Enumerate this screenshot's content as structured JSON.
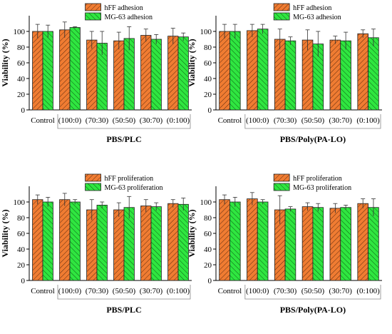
{
  "colors": {
    "hff": "#f07c32",
    "mg63": "#2fe640",
    "stroke": "#222222"
  },
  "chart_data": [
    {
      "type": "bar",
      "panel": "top-left",
      "categories": [
        "Control",
        "(100:0)",
        "(70:30)",
        "(50:50)",
        "(30:70)",
        "(0:100)"
      ],
      "series": [
        {
          "name": "hFF adhesion",
          "values": [
            100,
            102,
            89,
            88,
            95,
            94
          ],
          "errors": [
            9,
            10,
            11,
            11,
            8,
            10
          ]
        },
        {
          "name": "MG-63 adhesion",
          "values": [
            100,
            105,
            85,
            91,
            90,
            93
          ],
          "errors": [
            8,
            1,
            15,
            15,
            6,
            5
          ]
        }
      ],
      "xlabel": "PBS/PLC",
      "ylabel": "Viability (%)",
      "ylim": [
        0,
        120
      ],
      "yticks": [
        0,
        20,
        40,
        60,
        80,
        100
      ],
      "legend": "top-center"
    },
    {
      "type": "bar",
      "panel": "top-right",
      "categories": [
        "Control",
        "(100:0)",
        "(70:30)",
        "(50:50)",
        "(30:70)",
        "(0:100)"
      ],
      "series": [
        {
          "name": "hFF adhesion",
          "values": [
            100,
            101,
            90,
            89,
            89,
            97
          ],
          "errors": [
            9,
            8,
            13,
            13,
            5,
            5
          ]
        },
        {
          "name": "MG-63 adhesion",
          "values": [
            100,
            103,
            88,
            84,
            88,
            92
          ],
          "errors": [
            9,
            6,
            5,
            16,
            11,
            11
          ]
        }
      ],
      "xlabel": "PBS/Poly(PA-LO)",
      "ylabel": "Viability (%)",
      "ylim": [
        0,
        120
      ],
      "yticks": [
        0,
        20,
        40,
        60,
        80,
        100
      ],
      "legend": "top-center"
    },
    {
      "type": "bar",
      "panel": "bottom-left",
      "categories": [
        "Control",
        "(100:0)",
        "(70:30)",
        "(50:50)",
        "(30:70)",
        "(0:100)"
      ],
      "series": [
        {
          "name": "hFF proliferation",
          "values": [
            103,
            103,
            90,
            90,
            95,
            98
          ],
          "errors": [
            6,
            8,
            13,
            9,
            8,
            5
          ]
        },
        {
          "name": "MG-63 proliferation",
          "values": [
            100,
            100,
            96,
            93,
            94,
            97
          ],
          "errors": [
            6,
            3,
            4,
            14,
            5,
            8
          ]
        }
      ],
      "xlabel": "PBS/PLC",
      "ylabel": "Viability (%)",
      "ylim": [
        0,
        120
      ],
      "yticks": [
        0,
        20,
        40,
        60,
        80,
        100
      ],
      "legend": "top-center"
    },
    {
      "type": "bar",
      "panel": "bottom-right",
      "categories": [
        "Control",
        "(100:0)",
        "(70:30)",
        "(50:50)",
        "(30:70)",
        "(0:100)"
      ],
      "series": [
        {
          "name": "hFF proliferation",
          "values": [
            103,
            104,
            90,
            94,
            92,
            98
          ],
          "errors": [
            6,
            8,
            18,
            5,
            6,
            6
          ]
        },
        {
          "name": "MG-63 proliferation",
          "values": [
            100,
            100,
            91,
            93,
            93,
            93
          ],
          "errors": [
            6,
            3,
            3,
            5,
            3,
            11
          ]
        }
      ],
      "xlabel": "PBS/Poly(PA-LO)",
      "ylabel": "Viability (%)",
      "ylim": [
        0,
        120
      ],
      "yticks": [
        0,
        20,
        40,
        60,
        80,
        100
      ],
      "legend": "top-center"
    }
  ]
}
